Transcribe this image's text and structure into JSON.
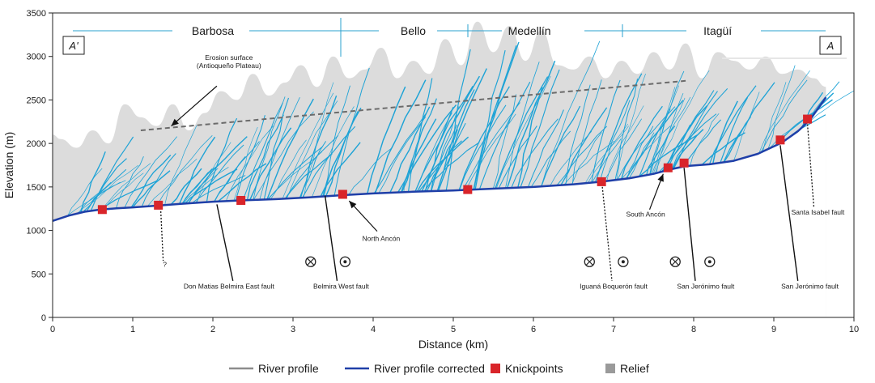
{
  "chart_data": {
    "type": "line",
    "xlabel": "Distance (km)",
    "ylabel": "Elevation (m)",
    "xlim": [
      0,
      10
    ],
    "ylim": [
      0,
      3500
    ],
    "xticks": [
      "0",
      "1",
      "2",
      "3",
      "4",
      "5",
      "6",
      "7",
      "8",
      "9",
      "10"
    ],
    "yticks": [
      "0",
      "500",
      "1000",
      "1500",
      "2000",
      "2500",
      "3000",
      "3500"
    ],
    "towns": [
      {
        "label": "Barbosa",
        "x": 2.0
      },
      {
        "label": "Bello",
        "x": 4.5
      },
      {
        "label": "Medellín",
        "x": 5.95
      },
      {
        "label": "Itagüí",
        "x": 8.3
      }
    ],
    "section_labels": {
      "left": "A'",
      "right": "A"
    },
    "series": [
      {
        "name": "River profile corrected",
        "color": "#1f3fa8",
        "x": [
          0,
          0.2,
          0.4,
          0.6,
          0.8,
          1.0,
          1.3,
          1.6,
          2.0,
          2.35,
          2.8,
          3.2,
          3.6,
          4.0,
          4.5,
          5.0,
          5.5,
          6.0,
          6.5,
          6.85,
          7.2,
          7.5,
          7.7,
          7.9,
          8.2,
          8.5,
          8.8,
          9.1,
          9.3,
          9.45,
          9.55,
          9.65
        ],
        "y": [
          1110,
          1170,
          1215,
          1240,
          1255,
          1265,
          1285,
          1305,
          1330,
          1345,
          1360,
          1380,
          1405,
          1425,
          1445,
          1460,
          1480,
          1500,
          1530,
          1560,
          1600,
          1650,
          1700,
          1740,
          1760,
          1800,
          1880,
          2010,
          2140,
          2270,
          2400,
          2530
        ]
      },
      {
        "name": "Relief",
        "color": "#dcdcdc",
        "x": [
          0,
          0.1,
          0.3,
          0.5,
          0.7,
          0.9,
          1.1,
          1.3,
          1.5,
          1.7,
          1.9,
          2.1,
          2.3,
          2.5,
          2.7,
          2.9,
          3.1,
          3.3,
          3.5,
          3.7,
          3.9,
          4.1,
          4.3,
          4.5,
          4.7,
          4.9,
          5.1,
          5.3,
          5.5,
          5.7,
          5.9,
          6.1,
          6.3,
          6.5,
          6.7,
          6.9,
          7.1,
          7.3,
          7.5,
          7.7,
          7.9,
          8.1,
          8.3,
          8.5,
          8.7,
          8.9,
          9.1,
          9.3,
          9.5,
          9.65
        ],
        "y": [
          2100,
          2050,
          1950,
          2150,
          2000,
          2450,
          2300,
          2200,
          2450,
          2150,
          2350,
          2600,
          2500,
          2800,
          2550,
          2700,
          2900,
          2650,
          3000,
          2750,
          2850,
          3100,
          2750,
          2950,
          2800,
          3200,
          2900,
          3400,
          3050,
          3350,
          2950,
          3300,
          2900,
          2850,
          3000,
          2750,
          2950,
          2800,
          3050,
          2850,
          3150,
          2750,
          3050,
          2950,
          2850,
          3000,
          2800,
          2850,
          2750,
          2650
        ]
      },
      {
        "name": "Erosion surface",
        "color": "#6b6b6b",
        "x": [
          1.1,
          7.9
        ],
        "y": [
          2150,
          2720
        ]
      }
    ],
    "knickpoints": {
      "name": "Knickpoints",
      "color": "#d9252a",
      "x": [
        0.62,
        1.32,
        2.35,
        3.62,
        5.18,
        6.85,
        7.68,
        7.88,
        9.08,
        9.42
      ],
      "y": [
        1240,
        1290,
        1345,
        1415,
        1470,
        1560,
        1720,
        1775,
        2040,
        2280
      ]
    },
    "annotations": [
      {
        "text": "Erosion surface",
        "text2": "(Antioqueño Plateau)",
        "x": 2.2,
        "y": 2960
      },
      {
        "text": "North Ancón",
        "x": 4.1,
        "y": 880
      },
      {
        "text": "South Ancón",
        "x": 7.4,
        "y": 1160
      },
      {
        "text": "Santa Isabel fault",
        "x": 9.55,
        "y": 1180
      },
      {
        "text": "?",
        "x": 1.4,
        "y": 580
      },
      {
        "text": "Don Matias Belmira East fault",
        "x": 2.2,
        "y": 330
      },
      {
        "text": "Belmira West fault",
        "x": 3.6,
        "y": 330
      },
      {
        "text": "Iguaná Boquerón fault",
        "x": 7.0,
        "y": 330
      },
      {
        "text": "San Jerónimo fault",
        "x": 8.15,
        "y": 330
      },
      {
        "text": "San Jerónimo fault",
        "x": 9.45,
        "y": 330
      }
    ],
    "legend": {
      "position": "bottom",
      "items": [
        {
          "label": "River profile",
          "color": "#8c8c8c",
          "kind": "line"
        },
        {
          "label": "River profile corrected",
          "color": "#1f3fa8",
          "kind": "line"
        },
        {
          "label": "Knickpoints",
          "color": "#d9252a",
          "kind": "square"
        },
        {
          "label": "Relief",
          "color": "#9a9a9a",
          "kind": "square"
        }
      ]
    }
  }
}
